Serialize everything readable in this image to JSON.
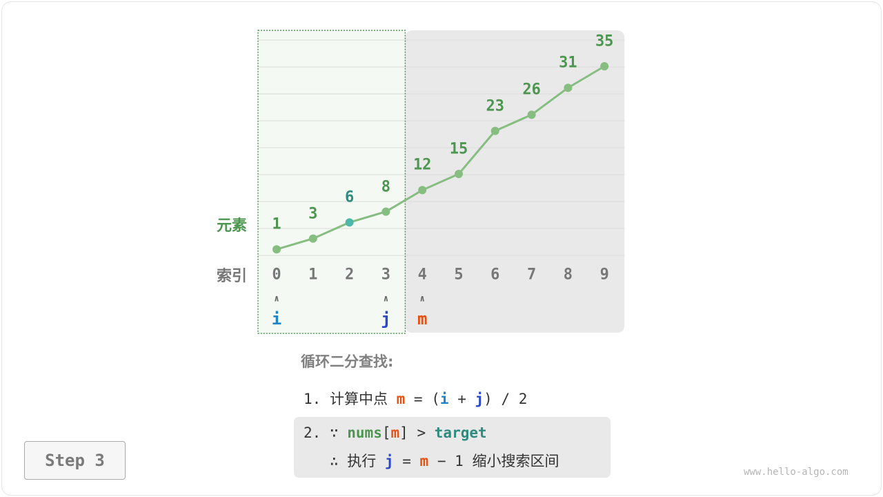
{
  "figure": {
    "row_labels": {
      "elements": "元素",
      "indices": "索引"
    },
    "values": [
      1,
      3,
      6,
      8,
      12,
      15,
      23,
      26,
      31,
      35
    ],
    "indices": [
      "0",
      "1",
      "2",
      "3",
      "4",
      "5",
      "6",
      "7",
      "8",
      "9"
    ],
    "highlight_index": 2,
    "pointers": [
      {
        "name": "i",
        "index": 0,
        "color": "#1f84c8"
      },
      {
        "name": "j",
        "index": 3,
        "color": "#2a48c9"
      },
      {
        "name": "m",
        "index": 4,
        "color": "#e8500f"
      }
    ],
    "search_range": [
      0,
      3
    ],
    "excluded_range": [
      4,
      9
    ],
    "colors": {
      "line": "#86bd80",
      "label": "#4c964f",
      "highlight": "#4cb8a9",
      "highlight_label": "#2e8b7e",
      "index": "#777777",
      "excluded_bg": "#e9e9e9",
      "range_bg": "#f4f9f4",
      "range_border": "#4c964f"
    }
  },
  "text": {
    "title": "循环二分查找:",
    "step1": {
      "num": "1.",
      "desc": "计算中点",
      "m": "m",
      "eq": "=",
      "open": "(",
      "i": "i",
      "plus": "+",
      "j": "j",
      "close": ")",
      "div": "/",
      "two": "2"
    },
    "step2": {
      "num": "2.",
      "because": "∵",
      "nums": "nums",
      "lb": "[",
      "m": "m",
      "rb": "]",
      "gt": ">",
      "target": "target",
      "therefore": "∴",
      "exec": "执行",
      "j": "j",
      "eq": "=",
      "m2": "m",
      "minus": "−",
      "one": "1",
      "desc": "缩小搜索区间"
    }
  },
  "step_button": "Step 3",
  "watermark": "www.hello-algo.com"
}
